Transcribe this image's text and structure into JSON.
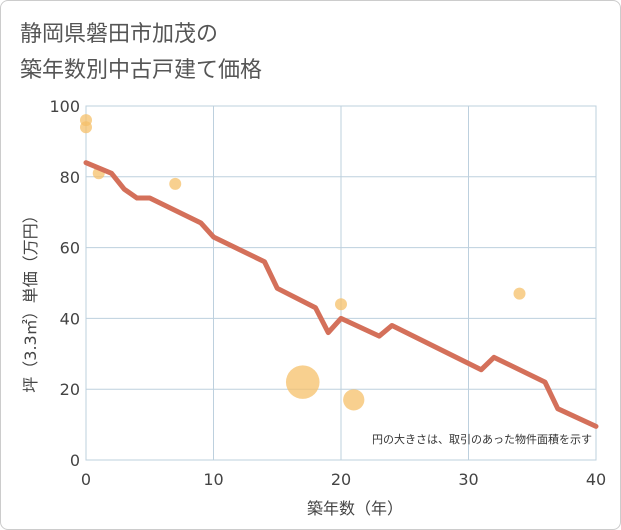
{
  "chart_data": {
    "type": "scatter",
    "title_line1": "静岡県磐田市加茂の",
    "title_line2": "築年数別中古戸建て価格",
    "xlabel": "築年数（年）",
    "ylabel": "坪（3.3㎡）単価（万円）",
    "xlim": [
      0,
      40
    ],
    "ylim": [
      0,
      100
    ],
    "x_ticks": [
      0,
      10,
      20,
      30,
      40
    ],
    "y_ticks": [
      0,
      20,
      40,
      60,
      80,
      100
    ],
    "grid": true,
    "note": "円の大きさは、取引のあった物件面積を示す",
    "colors": {
      "line": "#d4705a",
      "bubble": "#f5c06a",
      "grid": "#bdd0de"
    },
    "series": [
      {
        "name": "trend",
        "type": "line",
        "x": [
          0,
          2,
          3,
          4,
          5,
          9,
          10,
          14,
          15,
          18,
          19,
          20,
          23,
          24,
          31,
          32,
          36,
          37,
          40
        ],
        "y": [
          84,
          81,
          76.5,
          74,
          74,
          67,
          63,
          56,
          48.5,
          43,
          36,
          40,
          35,
          38,
          25.5,
          29,
          22,
          14.5,
          9.5
        ]
      },
      {
        "name": "transactions",
        "type": "scatter",
        "points": [
          {
            "x": 0,
            "y": 96,
            "size": 1
          },
          {
            "x": 0,
            "y": 94,
            "size": 1
          },
          {
            "x": 1,
            "y": 81,
            "size": 1
          },
          {
            "x": 7,
            "y": 78,
            "size": 1
          },
          {
            "x": 17,
            "y": 22,
            "size": 4
          },
          {
            "x": 20,
            "y": 44,
            "size": 1
          },
          {
            "x": 21,
            "y": 17,
            "size": 1.6
          },
          {
            "x": 34,
            "y": 47,
            "size": 1
          }
        ]
      }
    ]
  }
}
